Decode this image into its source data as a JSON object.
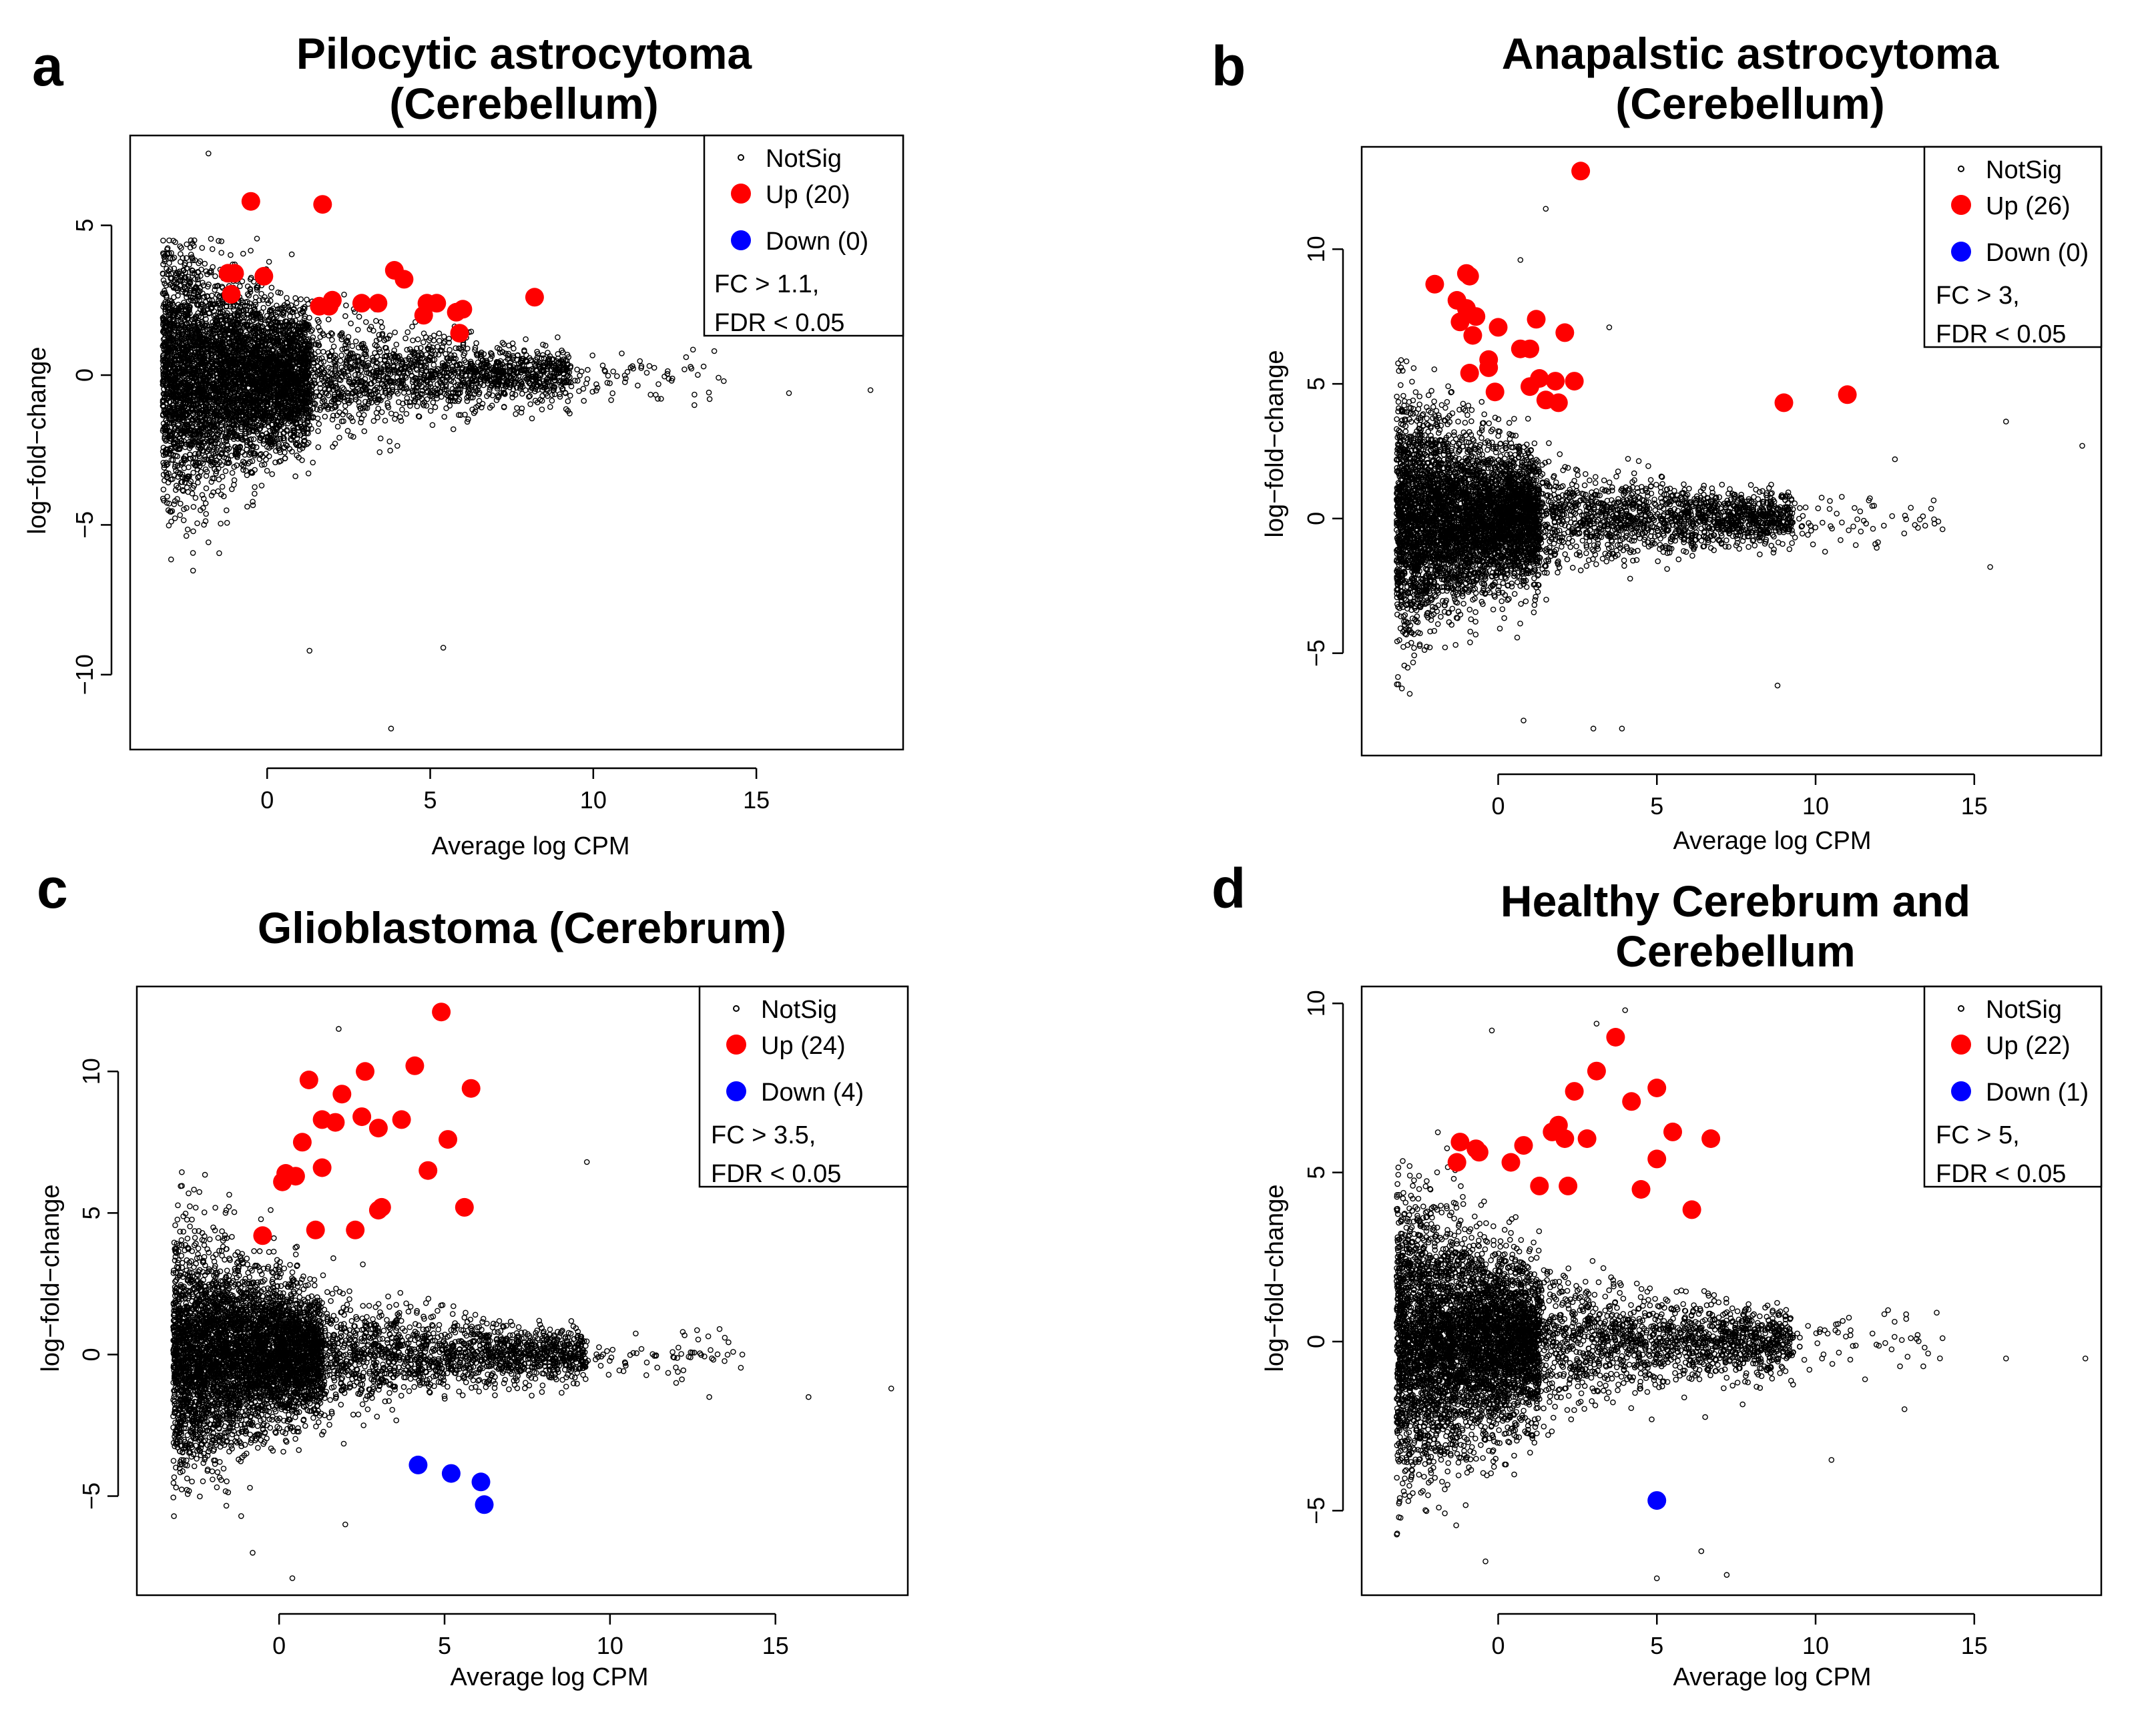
{
  "chart_data": [
    {
      "type": "scatter",
      "panel_letter": "a",
      "title_lines": [
        "Pilocytic astrocytoma",
        "(Cerebellum)"
      ],
      "xlabel": "Average log CPM",
      "ylabel": "log−fold−change",
      "xlim": [
        -4.2,
        19.5
      ],
      "ylim": [
        -12.5,
        8.0
      ],
      "xticks": [
        0,
        5,
        10,
        15
      ],
      "yticks": [
        -10,
        -5,
        0,
        5
      ],
      "legend": {
        "position": "top-right",
        "entries": [
          {
            "label": "NotSig",
            "color": "#000000",
            "kind": "open"
          },
          {
            "label": "Up (20)",
            "color": "#ff0000",
            "kind": "filled"
          },
          {
            "label": "Down (0)",
            "color": "#0000ff",
            "kind": "filled"
          }
        ],
        "notes": [
          "FC > 1.1,",
          "FDR < 0.05"
        ]
      },
      "notsig_profile": {
        "upper_max": 4.6,
        "lower_min": -10.5,
        "n": 6000,
        "seed": 11
      },
      "notsig_outliers": [
        [
          -1.8,
          7.4
        ],
        [
          3.8,
          -11.8
        ],
        [
          1.3,
          -9.2
        ],
        [
          5.4,
          -9.1
        ],
        [
          16.0,
          -0.6
        ],
        [
          18.5,
          -0.5
        ],
        [
          14.0,
          -0.2
        ],
        [
          13.1,
          -1.0
        ],
        [
          11.2,
          0.3
        ],
        [
          12.0,
          -0.3
        ]
      ],
      "up": [
        [
          -0.5,
          5.8
        ],
        [
          1.7,
          5.7
        ],
        [
          -1.0,
          3.4
        ],
        [
          -1.2,
          3.4
        ],
        [
          -0.1,
          3.3
        ],
        [
          3.9,
          3.5
        ],
        [
          4.2,
          3.2
        ],
        [
          -1.1,
          2.7
        ],
        [
          1.6,
          2.3
        ],
        [
          2.0,
          2.5
        ],
        [
          2.9,
          2.4
        ],
        [
          3.4,
          2.4
        ],
        [
          4.9,
          2.4
        ],
        [
          5.2,
          2.4
        ],
        [
          5.8,
          2.1
        ],
        [
          6.0,
          2.2
        ],
        [
          4.8,
          2.0
        ],
        [
          5.9,
          1.4
        ],
        [
          8.2,
          2.6
        ],
        [
          1.9,
          2.3
        ]
      ],
      "down": []
    },
    {
      "type": "scatter",
      "panel_letter": "b",
      "title_lines": [
        "Anapalstic astrocytoma",
        "(Cerebellum)"
      ],
      "xlabel": "Average log CPM",
      "ylabel": "log−fold−change",
      "xlim": [
        -4.3,
        19.0
      ],
      "ylim": [
        -8.8,
        13.8
      ],
      "xticks": [
        0,
        5,
        10,
        15
      ],
      "yticks": [
        -5,
        0,
        5,
        10
      ],
      "legend": {
        "position": "top-right",
        "entries": [
          {
            "label": "NotSig",
            "color": "#000000",
            "kind": "open"
          },
          {
            "label": "Up (26)",
            "color": "#ff0000",
            "kind": "filled"
          },
          {
            "label": "Down (0)",
            "color": "#0000ff",
            "kind": "filled"
          }
        ],
        "notes": [
          "FC > 3,",
          "FDR < 0.05"
        ]
      },
      "notsig_profile": {
        "upper_max": 6.5,
        "lower_min": -7.0,
        "n": 6000,
        "seed": 23
      },
      "notsig_outliers": [
        [
          1.5,
          11.5
        ],
        [
          0.7,
          9.6
        ],
        [
          3.5,
          7.1
        ],
        [
          18.4,
          2.7
        ],
        [
          16.0,
          3.6
        ],
        [
          14.0,
          -0.4
        ],
        [
          15.5,
          -1.8
        ],
        [
          13.0,
          0.4
        ],
        [
          12.5,
          2.2
        ],
        [
          8.8,
          -6.2
        ],
        [
          3.9,
          -7.8
        ],
        [
          3.0,
          -7.8
        ],
        [
          0.8,
          -7.5
        ]
      ],
      "up": [
        [
          2.6,
          12.9
        ],
        [
          -2.0,
          8.7
        ],
        [
          -1.0,
          9.1
        ],
        [
          -0.9,
          9.0
        ],
        [
          -1.3,
          8.1
        ],
        [
          -1.0,
          7.8
        ],
        [
          -0.7,
          7.5
        ],
        [
          -1.2,
          7.3
        ],
        [
          -0.8,
          6.8
        ],
        [
          0.0,
          7.1
        ],
        [
          1.2,
          7.4
        ],
        [
          2.1,
          6.9
        ],
        [
          0.7,
          6.3
        ],
        [
          1.0,
          6.3
        ],
        [
          -0.3,
          5.9
        ],
        [
          -0.3,
          5.6
        ],
        [
          -0.9,
          5.4
        ],
        [
          1.3,
          5.2
        ],
        [
          1.8,
          5.1
        ],
        [
          2.4,
          5.1
        ],
        [
          -0.1,
          4.7
        ],
        [
          1.0,
          4.9
        ],
        [
          1.5,
          4.4
        ],
        [
          1.9,
          4.3
        ],
        [
          9.0,
          4.3
        ],
        [
          11.0,
          4.6
        ]
      ],
      "down": []
    },
    {
      "type": "scatter",
      "panel_letter": "c",
      "title_lines": [
        "Glioblastoma (Cerebrum)"
      ],
      "xlabel": "Average log CPM",
      "ylabel": "log−fold−change",
      "xlim": [
        -4.3,
        19.0
      ],
      "ylim": [
        -8.5,
        13.0
      ],
      "xticks": [
        0,
        5,
        10,
        15
      ],
      "yticks": [
        -5,
        0,
        5,
        10
      ],
      "legend": {
        "position": "top-right",
        "entries": [
          {
            "label": "NotSig",
            "color": "#000000",
            "kind": "open"
          },
          {
            "label": "Up (24)",
            "color": "#ff0000",
            "kind": "filled"
          },
          {
            "label": "Down (4)",
            "color": "#0000ff",
            "kind": "filled"
          }
        ],
        "notes": [
          "FC > 3.5,",
          "FDR < 0.05"
        ]
      },
      "notsig_profile": {
        "upper_max": 7.0,
        "lower_min": -5.8,
        "n": 6000,
        "seed": 37
      },
      "notsig_outliers": [
        [
          1.8,
          11.5
        ],
        [
          0.4,
          -7.9
        ],
        [
          -0.8,
          -7.0
        ],
        [
          18.5,
          -1.2
        ],
        [
          16.0,
          -1.5
        ],
        [
          14.0,
          0.0
        ],
        [
          13.0,
          -1.5
        ],
        [
          12.2,
          0.8
        ],
        [
          12.0,
          -1.0
        ],
        [
          9.3,
          6.8
        ],
        [
          2.0,
          -6.0
        ]
      ],
      "up": [
        [
          4.9,
          12.1
        ],
        [
          4.1,
          10.2
        ],
        [
          0.9,
          9.7
        ],
        [
          2.6,
          10.0
        ],
        [
          5.8,
          9.4
        ],
        [
          1.9,
          9.2
        ],
        [
          1.3,
          8.3
        ],
        [
          1.7,
          8.2
        ],
        [
          2.5,
          8.4
        ],
        [
          3.7,
          8.3
        ],
        [
          3.0,
          8.0
        ],
        [
          5.1,
          7.6
        ],
        [
          0.7,
          7.5
        ],
        [
          1.3,
          6.6
        ],
        [
          0.2,
          6.4
        ],
        [
          0.5,
          6.3
        ],
        [
          0.1,
          6.1
        ],
        [
          4.5,
          6.5
        ],
        [
          3.1,
          5.2
        ],
        [
          3.0,
          5.1
        ],
        [
          5.6,
          5.2
        ],
        [
          1.1,
          4.4
        ],
        [
          2.3,
          4.4
        ],
        [
          -0.5,
          4.2
        ]
      ],
      "down": [
        [
          4.2,
          -3.9
        ],
        [
          5.2,
          -4.2
        ],
        [
          6.1,
          -4.5
        ],
        [
          6.2,
          -5.3
        ]
      ]
    },
    {
      "type": "scatter",
      "panel_letter": "d",
      "title_lines": [
        "Healthy Cerebrum and",
        "Cerebellum"
      ],
      "xlabel": "Average log CPM",
      "ylabel": "log−fold−change",
      "xlim": [
        -4.3,
        19.0
      ],
      "ylim": [
        -7.5,
        10.5
      ],
      "xticks": [
        0,
        5,
        10,
        15
      ],
      "yticks": [
        -5,
        0,
        5,
        10
      ],
      "legend": {
        "position": "top-right",
        "entries": [
          {
            "label": "NotSig",
            "color": "#000000",
            "kind": "open"
          },
          {
            "label": "Up (22)",
            "color": "#ff0000",
            "kind": "filled"
          },
          {
            "label": "Down (1)",
            "color": "#0000ff",
            "kind": "filled"
          }
        ],
        "notes": [
          "FC > 5,",
          "FDR < 0.05"
        ]
      },
      "notsig_profile": {
        "upper_max": 6.2,
        "lower_min": -6.0,
        "n": 6000,
        "seed": 53
      },
      "notsig_outliers": [
        [
          4.0,
          9.8
        ],
        [
          -0.2,
          9.2
        ],
        [
          3.1,
          9.4
        ],
        [
          18.5,
          -0.5
        ],
        [
          16.0,
          -0.5
        ],
        [
          14.0,
          0.1
        ],
        [
          13.0,
          0.1
        ],
        [
          12.8,
          -2.0
        ],
        [
          10.5,
          -3.5
        ],
        [
          5.0,
          -7.0
        ],
        [
          6.4,
          -6.2
        ],
        [
          7.2,
          -6.9
        ],
        [
          -0.4,
          -6.5
        ]
      ],
      "up": [
        [
          3.7,
          9.0
        ],
        [
          3.1,
          8.0
        ],
        [
          2.4,
          7.4
        ],
        [
          5.0,
          7.5
        ],
        [
          4.2,
          7.1
        ],
        [
          1.7,
          6.2
        ],
        [
          1.9,
          6.4
        ],
        [
          -1.2,
          5.9
        ],
        [
          -0.7,
          5.7
        ],
        [
          0.8,
          5.8
        ],
        [
          2.1,
          6.0
        ],
        [
          2.8,
          6.0
        ],
        [
          5.5,
          6.2
        ],
        [
          6.7,
          6.0
        ],
        [
          -1.3,
          5.3
        ],
        [
          0.4,
          5.3
        ],
        [
          5.0,
          5.4
        ],
        [
          1.3,
          4.6
        ],
        [
          2.2,
          4.6
        ],
        [
          4.5,
          4.5
        ],
        [
          6.1,
          3.9
        ],
        [
          -0.6,
          5.6
        ]
      ],
      "down": [
        [
          5.0,
          -4.7
        ]
      ]
    }
  ]
}
